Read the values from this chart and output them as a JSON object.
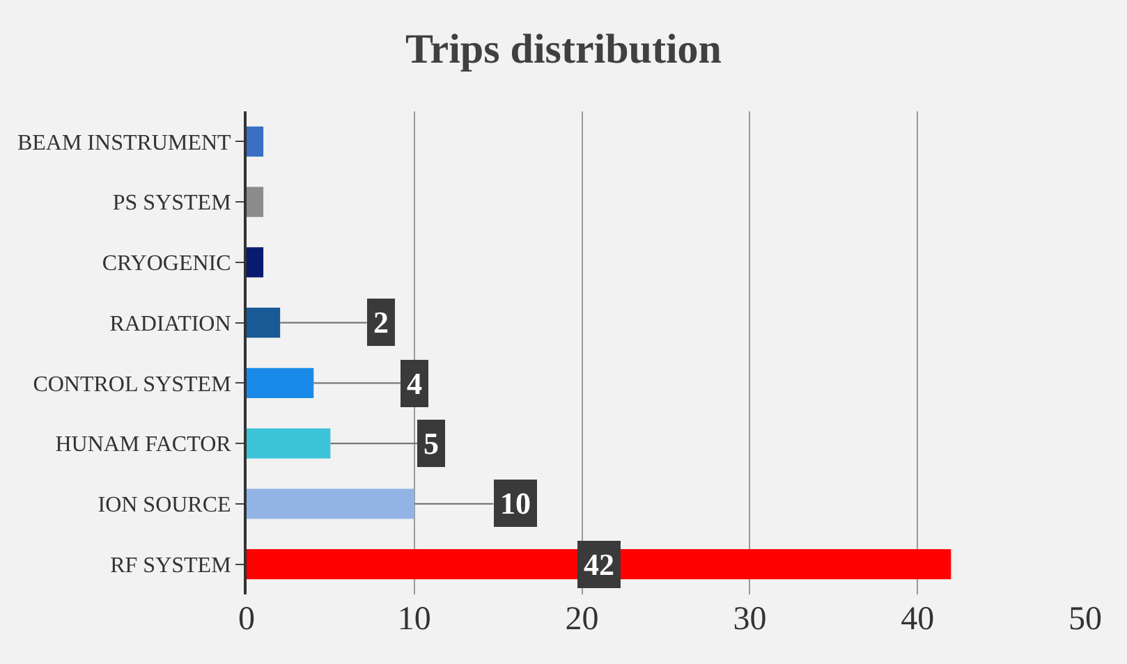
{
  "chart_data": {
    "type": "bar",
    "orientation": "horizontal",
    "title": "Trips distribution",
    "categories": [
      "BEAM INSTRUMENT",
      "PS SYSTEM",
      "CRYOGENIC",
      "RADIATION",
      "CONTROL SYSTEM",
      "HUNAM FACTOR",
      "ION SOURCE",
      "RF SYSTEM"
    ],
    "values": [
      1,
      1,
      1,
      2,
      4,
      5,
      10,
      42
    ],
    "colors": [
      "#3a6fc4",
      "#8c8c8c",
      "#0a1a6e",
      "#1a5a96",
      "#1a8ae8",
      "#3cc4d8",
      "#92b4e4",
      "#ff0000"
    ],
    "value_labels": [
      null,
      null,
      null,
      "2",
      "4",
      "5",
      "10",
      "42"
    ],
    "xlim": [
      0,
      50
    ],
    "xticks": [
      0,
      10,
      20,
      30,
      40,
      50
    ],
    "grid": "x"
  }
}
